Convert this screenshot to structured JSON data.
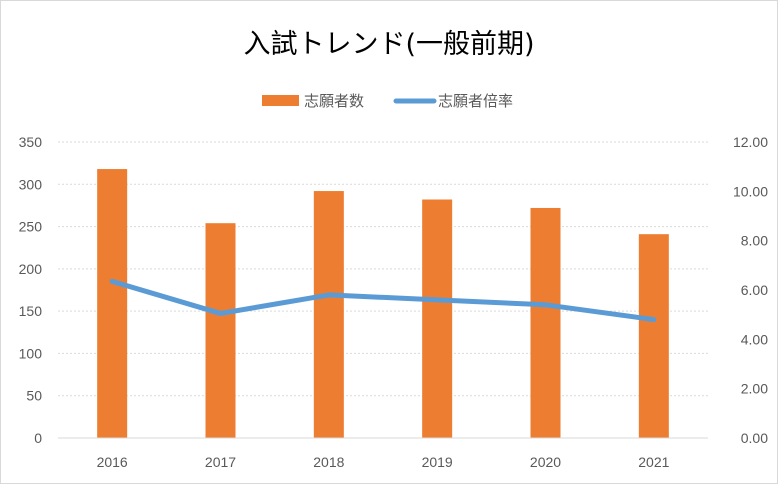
{
  "chart_data": {
    "type": "bar",
    "title": "入試トレンド(一般前期)",
    "categories": [
      "2016",
      "2017",
      "2018",
      "2019",
      "2020",
      "2021"
    ],
    "series": [
      {
        "name": "志願者数",
        "type": "bar",
        "axis": "left",
        "color": "#ED7D31",
        "values": [
          318,
          254,
          292,
          282,
          272,
          241
        ]
      },
      {
        "name": "志願者倍率",
        "type": "line",
        "axis": "right",
        "color": "#5B9BD5",
        "values": [
          6.35,
          5.05,
          5.8,
          5.6,
          5.4,
          4.8
        ]
      }
    ],
    "y_left": {
      "ylim": [
        0,
        350
      ],
      "ticks": [
        "0",
        "50",
        "100",
        "150",
        "200",
        "250",
        "300",
        "350"
      ]
    },
    "y_right": {
      "ylim": [
        0,
        12
      ],
      "ticks": [
        "0.00",
        "2.00",
        "4.00",
        "6.00",
        "8.00",
        "10.00",
        "12.00"
      ]
    },
    "grid": true,
    "legend": "top-center"
  }
}
